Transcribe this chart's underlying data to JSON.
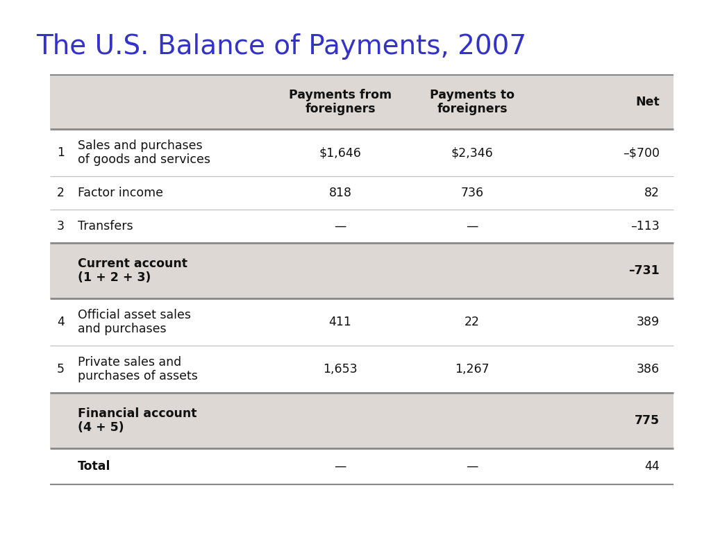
{
  "title": "The U.S. Balance of Payments, 2007",
  "title_color": "#3333cc",
  "title_fontsize": 28,
  "background_color": "#ffffff",
  "table_bg_light": "#ddd8d4",
  "border_color_thick": "#888888",
  "border_color_thin": "#bbbbbb",
  "header_row": {
    "col2": "Payments from\nforeigners",
    "col3": "Payments to\nforeigners",
    "col4": "Net"
  },
  "rows": [
    {
      "num": "1",
      "label": "Sales and purchases\nof goods and services",
      "col2": "$1,646",
      "col3": "$2,346",
      "col4": "–$700",
      "shaded": false,
      "bold_label": false,
      "bold_net": false,
      "two_line": true
    },
    {
      "num": "2",
      "label": "Factor income",
      "col2": "818",
      "col3": "736",
      "col4": "82",
      "shaded": false,
      "bold_label": false,
      "bold_net": false,
      "two_line": false
    },
    {
      "num": "3",
      "label": "Transfers",
      "col2": "—",
      "col3": "—",
      "col4": "–113",
      "shaded": false,
      "bold_label": false,
      "bold_net": false,
      "two_line": false
    },
    {
      "num": "",
      "label": "Current account\n(1 + 2 + 3)",
      "col2": "",
      "col3": "",
      "col4": "–731",
      "shaded": true,
      "bold_label": true,
      "bold_net": true,
      "two_line": true
    },
    {
      "num": "4",
      "label": "Official asset sales\nand purchases",
      "col2": "411",
      "col3": "22",
      "col4": "389",
      "shaded": false,
      "bold_label": false,
      "bold_net": false,
      "two_line": true
    },
    {
      "num": "5",
      "label": "Private sales and\npurchases of assets",
      "col2": "1,653",
      "col3": "1,267",
      "col4": "386",
      "shaded": false,
      "bold_label": false,
      "bold_net": false,
      "two_line": true
    },
    {
      "num": "",
      "label": "Financial account\n(4 + 5)",
      "col2": "",
      "col3": "",
      "col4": "775",
      "shaded": true,
      "bold_label": true,
      "bold_net": true,
      "two_line": true
    },
    {
      "num": "",
      "label": "Total",
      "col2": "—",
      "col3": "—",
      "col4": "44",
      "shaded": false,
      "bold_label": true,
      "bold_net": false,
      "two_line": false
    }
  ]
}
